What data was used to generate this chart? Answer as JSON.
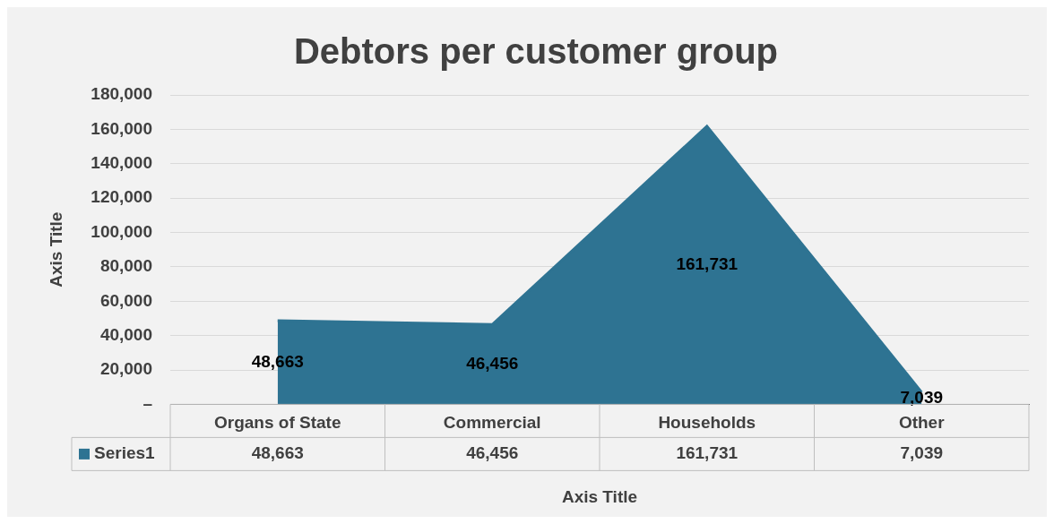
{
  "chart_data": {
    "type": "area",
    "title": "Debtors per customer group",
    "xlabel": "Axis Title",
    "ylabel": "Axis Title",
    "categories": [
      "Organs of State",
      "Commercial",
      "Households",
      "Other"
    ],
    "series": [
      {
        "name": "Series1",
        "color": "#2e7392",
        "values": [
          48663,
          46456,
          161731,
          7039
        ],
        "value_labels": [
          "48,663",
          "46,456",
          "161,731",
          "7,039"
        ]
      }
    ],
    "ylim": [
      0,
      180000
    ],
    "yticks": [
      {
        "value": 0,
        "label": "–"
      },
      {
        "value": 20000,
        "label": "20,000"
      },
      {
        "value": 40000,
        "label": "40,000"
      },
      {
        "value": 60000,
        "label": "60,000"
      },
      {
        "value": 80000,
        "label": "80,000"
      },
      {
        "value": 100000,
        "label": "100,000"
      },
      {
        "value": 120000,
        "label": "120,000"
      },
      {
        "value": 140000,
        "label": "140,000"
      },
      {
        "value": 160000,
        "label": "160,000"
      },
      {
        "value": 180000,
        "label": "180,000"
      }
    ],
    "grid": "y",
    "legend": "bottom"
  }
}
